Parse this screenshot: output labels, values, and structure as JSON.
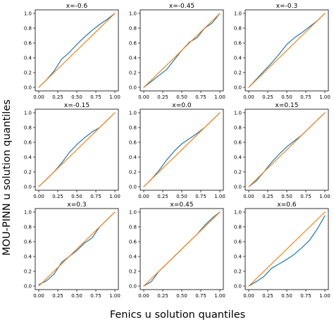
{
  "figure": {
    "xlabel": "Fenics u solution quantiles",
    "ylabel": "MOU-PINN u solution quantiles"
  },
  "colors": {
    "model": "#1f77b4",
    "reference": "#ff7f0e",
    "axes": "#000000"
  },
  "chart_data": [
    {
      "type": "line",
      "title": "x=-0.6",
      "xlim": [
        0,
        1
      ],
      "ylim": [
        0,
        1
      ],
      "xticks": [
        "0.00",
        "0.25",
        "0.50",
        "0.75",
        "1.00"
      ],
      "yticks": [
        "0.0",
        "0.2",
        "0.4",
        "0.6",
        "0.8",
        "1.0"
      ],
      "series": [
        {
          "role": "model",
          "x": [
            0,
            0.1,
            0.2,
            0.3,
            0.4,
            0.5,
            0.6,
            0.7,
            0.8,
            0.9,
            1.0
          ],
          "y": [
            0,
            0.1,
            0.22,
            0.38,
            0.47,
            0.58,
            0.68,
            0.77,
            0.85,
            0.92,
            1.0
          ]
        },
        {
          "role": "reference",
          "x": [
            0,
            1
          ],
          "y": [
            0,
            1
          ]
        }
      ]
    },
    {
      "type": "line",
      "title": "x=-0.45",
      "xlim": [
        0,
        1
      ],
      "ylim": [
        0,
        1
      ],
      "xticks": [
        "0.00",
        "0.25",
        "0.50",
        "0.75",
        "1.00"
      ],
      "yticks": [
        "0.0",
        "0.2",
        "0.4",
        "0.6",
        "0.8",
        "1.0"
      ],
      "series": [
        {
          "role": "model",
          "x": [
            0,
            0.1,
            0.2,
            0.3,
            0.4,
            0.5,
            0.6,
            0.7,
            0.8,
            0.9,
            1.0
          ],
          "y": [
            0,
            0.08,
            0.16,
            0.24,
            0.37,
            0.5,
            0.61,
            0.67,
            0.8,
            0.87,
            1.0
          ]
        },
        {
          "role": "reference",
          "x": [
            0,
            1
          ],
          "y": [
            0,
            1
          ]
        }
      ]
    },
    {
      "type": "line",
      "title": "x=-0.3",
      "xlim": [
        0,
        1
      ],
      "ylim": [
        0,
        1
      ],
      "xticks": [
        "0.00",
        "0.25",
        "0.50",
        "0.75",
        "1.00"
      ],
      "yticks": [
        "0.0",
        "0.2",
        "0.4",
        "0.6",
        "0.8",
        "1.0"
      ],
      "series": [
        {
          "role": "model",
          "x": [
            0,
            0.1,
            0.2,
            0.3,
            0.4,
            0.5,
            0.6,
            0.7,
            0.8,
            0.9,
            1.0
          ],
          "y": [
            0,
            0.11,
            0.22,
            0.33,
            0.45,
            0.58,
            0.67,
            0.74,
            0.82,
            0.9,
            1.0
          ]
        },
        {
          "role": "reference",
          "x": [
            0,
            1
          ],
          "y": [
            0,
            1
          ]
        }
      ]
    },
    {
      "type": "line",
      "title": "x=-0.15",
      "xlim": [
        0,
        1
      ],
      "ylim": [
        0,
        1
      ],
      "xticks": [
        "0.00",
        "0.25",
        "0.50",
        "0.75",
        "1.00"
      ],
      "yticks": [
        "0.0",
        "0.2",
        "0.4",
        "0.6",
        "0.8",
        "1.0"
      ],
      "series": [
        {
          "role": "model",
          "x": [
            0,
            0.1,
            0.2,
            0.3,
            0.4,
            0.5,
            0.6,
            0.7,
            0.8,
            0.9,
            1.0
          ],
          "y": [
            0,
            0.1,
            0.2,
            0.32,
            0.46,
            0.57,
            0.66,
            0.74,
            0.8,
            0.9,
            1.0
          ]
        },
        {
          "role": "reference",
          "x": [
            0,
            1
          ],
          "y": [
            0,
            1
          ]
        }
      ]
    },
    {
      "type": "line",
      "title": "x=0.0",
      "xlim": [
        0,
        1
      ],
      "ylim": [
        0,
        1
      ],
      "xticks": [
        "0.00",
        "0.25",
        "0.50",
        "0.75",
        "1.00"
      ],
      "yticks": [
        "0.0",
        "0.2",
        "0.4",
        "0.6",
        "0.8",
        "1.0"
      ],
      "series": [
        {
          "role": "model",
          "x": [
            0,
            0.1,
            0.2,
            0.3,
            0.4,
            0.5,
            0.6,
            0.7,
            0.8,
            0.9,
            1.0
          ],
          "y": [
            0,
            0.1,
            0.22,
            0.36,
            0.48,
            0.58,
            0.65,
            0.72,
            0.8,
            0.9,
            1.0
          ]
        },
        {
          "role": "reference",
          "x": [
            0,
            1
          ],
          "y": [
            0,
            1
          ]
        }
      ]
    },
    {
      "type": "line",
      "title": "x=0.15",
      "xlim": [
        0,
        1
      ],
      "ylim": [
        0,
        1
      ],
      "xticks": [
        "0.00",
        "0.25",
        "0.50",
        "0.75",
        "1.00"
      ],
      "yticks": [
        "0.0",
        "0.2",
        "0.4",
        "0.6",
        "0.8",
        "1.0"
      ],
      "series": [
        {
          "role": "model",
          "x": [
            0,
            0.1,
            0.2,
            0.3,
            0.4,
            0.5,
            0.6,
            0.7,
            0.8,
            0.9,
            1.0
          ],
          "y": [
            0,
            0.08,
            0.2,
            0.33,
            0.44,
            0.54,
            0.62,
            0.7,
            0.8,
            0.9,
            1.0
          ]
        },
        {
          "role": "reference",
          "x": [
            0,
            1
          ],
          "y": [
            0,
            1
          ]
        }
      ]
    },
    {
      "type": "line",
      "title": "x=0.3",
      "xlim": [
        0,
        1
      ],
      "ylim": [
        0,
        1
      ],
      "xticks": [
        "0.00",
        "0.25",
        "0.50",
        "0.75",
        "1.00"
      ],
      "yticks": [
        "0.0",
        "0.2",
        "0.4",
        "0.6",
        "0.8",
        "1.0"
      ],
      "series": [
        {
          "role": "model",
          "x": [
            0,
            0.1,
            0.2,
            0.3,
            0.4,
            0.5,
            0.6,
            0.7,
            0.8,
            0.9,
            1.0
          ],
          "y": [
            0.02,
            0.07,
            0.16,
            0.32,
            0.4,
            0.48,
            0.58,
            0.65,
            0.8,
            0.9,
            1.0
          ]
        },
        {
          "role": "reference",
          "x": [
            0,
            1
          ],
          "y": [
            0,
            1
          ]
        }
      ]
    },
    {
      "type": "line",
      "title": "x=0.45",
      "xlim": [
        0,
        1
      ],
      "ylim": [
        0,
        1
      ],
      "xticks": [
        "0.00",
        "0.25",
        "0.50",
        "0.75",
        "1.00"
      ],
      "yticks": [
        "0.0",
        "0.2",
        "0.4",
        "0.6",
        "0.8",
        "1.0"
      ],
      "series": [
        {
          "role": "model",
          "x": [
            0,
            0.1,
            0.2,
            0.3,
            0.4,
            0.5,
            0.6,
            0.7,
            0.8,
            0.9,
            1.0
          ],
          "y": [
            0,
            0.06,
            0.2,
            0.3,
            0.4,
            0.5,
            0.6,
            0.7,
            0.82,
            0.92,
            1.0
          ]
        },
        {
          "role": "reference",
          "x": [
            0,
            1
          ],
          "y": [
            0,
            1
          ]
        }
      ]
    },
    {
      "type": "line",
      "title": "x=0.6",
      "xlim": [
        0,
        1
      ],
      "ylim": [
        0,
        1
      ],
      "xticks": [
        "0.00",
        "0.25",
        "0.50",
        "0.75",
        "1.00"
      ],
      "yticks": [
        "0.0",
        "0.2",
        "0.4",
        "0.6",
        "0.8",
        "1.0"
      ],
      "series": [
        {
          "role": "model",
          "x": [
            0,
            0.1,
            0.2,
            0.3,
            0.4,
            0.5,
            0.6,
            0.7,
            0.8,
            0.9,
            1.0
          ],
          "y": [
            0,
            0.06,
            0.13,
            0.24,
            0.3,
            0.36,
            0.43,
            0.52,
            0.62,
            0.77,
            0.95
          ]
        },
        {
          "role": "reference",
          "x": [
            0,
            1
          ],
          "y": [
            0,
            1
          ]
        }
      ]
    }
  ]
}
